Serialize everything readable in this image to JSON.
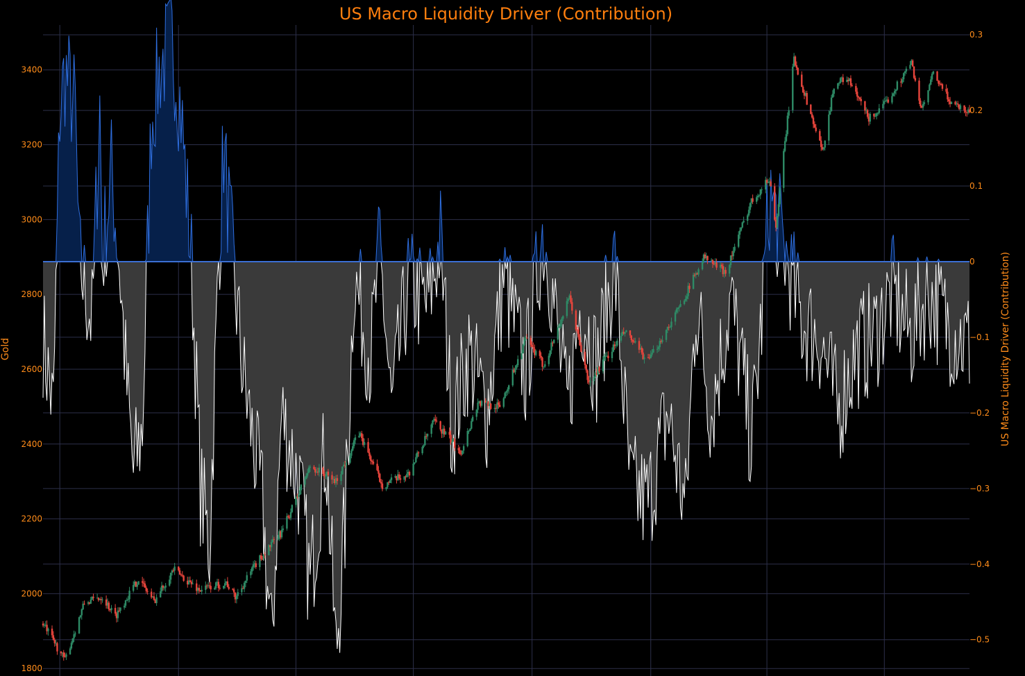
{
  "chart_data": {
    "type": "candlestick+area",
    "title": "US Macro Liquidity Driver (Contribution)",
    "yaxis_left": {
      "label": "Gold",
      "range": [
        1780,
        3520
      ],
      "ticks": [
        1800,
        2000,
        2200,
        2400,
        2600,
        2800,
        3000,
        3200,
        3400
      ]
    },
    "yaxis_right": {
      "label": "US Macro Liquidity Driver (Contribution)",
      "range": [
        -0.548,
        0.313
      ],
      "ticks": [
        0.3,
        0.2,
        0.1,
        0,
        -0.1,
        -0.2,
        -0.3,
        -0.4,
        -0.5
      ],
      "tick_labels": [
        "0.3",
        "0.2",
        "0.1",
        "0",
        "−0.1",
        "−0.2",
        "−0.3",
        "−0.4",
        "−0.5"
      ]
    },
    "x": {
      "type": "date",
      "range": [
        "2023-09-18",
        "2025-09-05"
      ],
      "grid_dates": [
        "2023-10-01",
        "2024-01-01",
        "2024-04-01",
        "2024-07-01",
        "2024-10-01",
        "2025-01-01",
        "2025-04-01",
        "2025-07-01"
      ]
    },
    "grid": true,
    "colors": {
      "up": "#2e8b66",
      "down": "#e8453c",
      "positive_line": "#2f6fe0",
      "positive_fill": "#06204a",
      "negative_line": "#ffffff",
      "negative_fill": "#3a3a3a",
      "zero_line": "#3b6fd4",
      "grid": "#2d2f4a",
      "title": "#ff7f0e",
      "text": "#ff8c1a"
    },
    "gold_close_anchors": [
      [
        "2023-09-18",
        1920
      ],
      [
        "2023-10-05",
        1822
      ],
      [
        "2023-10-20",
        1975
      ],
      [
        "2023-11-03",
        1992
      ],
      [
        "2023-11-13",
        1940
      ],
      [
        "2023-12-01",
        2040
      ],
      [
        "2023-12-04",
        2025
      ],
      [
        "2023-12-13",
        1980
      ],
      [
        "2023-12-28",
        2065
      ],
      [
        "2024-01-17",
        2010
      ],
      [
        "2024-02-07",
        2030
      ],
      [
        "2024-02-14",
        1990
      ],
      [
        "2024-03-01",
        2080
      ],
      [
        "2024-03-21",
        2165
      ],
      [
        "2024-04-12",
        2340
      ],
      [
        "2024-04-23",
        2320
      ],
      [
        "2024-05-02",
        2300
      ],
      [
        "2024-05-20",
        2430
      ],
      [
        "2024-06-07",
        2290
      ],
      [
        "2024-06-27",
        2320
      ],
      [
        "2024-07-17",
        2460
      ],
      [
        "2024-08-07",
        2380
      ],
      [
        "2024-08-20",
        2510
      ],
      [
        "2024-09-06",
        2500
      ],
      [
        "2024-09-26",
        2680
      ],
      [
        "2024-10-10",
        2610
      ],
      [
        "2024-10-30",
        2790
      ],
      [
        "2024-11-14",
        2560
      ],
      [
        "2024-11-25",
        2620
      ],
      [
        "2024-12-12",
        2700
      ],
      [
        "2024-12-30",
        2620
      ],
      [
        "2025-01-24",
        2770
      ],
      [
        "2025-02-11",
        2900
      ],
      [
        "2025-02-28",
        2860
      ],
      [
        "2025-03-20",
        3050
      ],
      [
        "2025-04-03",
        3110
      ],
      [
        "2025-04-08",
        2980
      ],
      [
        "2025-04-22",
        3430
      ],
      [
        "2025-05-14",
        3180
      ],
      [
        "2025-05-23",
        3360
      ],
      [
        "2025-06-02",
        3380
      ],
      [
        "2025-06-19",
        3270
      ],
      [
        "2025-06-30",
        3300
      ],
      [
        "2025-07-22",
        3420
      ],
      [
        "2025-07-30",
        3290
      ],
      [
        "2025-08-08",
        3390
      ],
      [
        "2025-08-20",
        3320
      ],
      [
        "2025-09-03",
        3290
      ]
    ],
    "contribution_anchors": [
      [
        "2023-09-18",
        -0.1
      ],
      [
        "2023-09-26",
        -0.2
      ],
      [
        "2023-10-01",
        0.2
      ],
      [
        "2023-10-05",
        0.25
      ],
      [
        "2023-10-13",
        0.2
      ],
      [
        "2023-10-16",
        0.0
      ],
      [
        "2023-10-26",
        -0.08
      ],
      [
        "2023-11-01",
        0.21
      ],
      [
        "2023-11-03",
        0.0
      ],
      [
        "2023-11-10",
        0.12
      ],
      [
        "2023-11-16",
        0.0
      ],
      [
        "2023-11-22",
        -0.17
      ],
      [
        "2023-11-27",
        -0.28
      ],
      [
        "2023-12-04",
        -0.22
      ],
      [
        "2023-12-11",
        0.19
      ],
      [
        "2023-12-18",
        0.26
      ],
      [
        "2023-12-27",
        0.29
      ],
      [
        "2024-01-03",
        0.2
      ],
      [
        "2024-01-11",
        0.0
      ],
      [
        "2024-01-18",
        -0.3
      ],
      [
        "2024-01-25",
        -0.38
      ],
      [
        "2024-02-01",
        0.0
      ],
      [
        "2024-02-05",
        0.15
      ],
      [
        "2024-02-12",
        0.0
      ],
      [
        "2024-02-20",
        -0.15
      ],
      [
        "2024-03-06",
        -0.32
      ],
      [
        "2024-03-13",
        -0.51
      ],
      [
        "2024-03-21",
        -0.2
      ],
      [
        "2024-04-04",
        -0.3
      ],
      [
        "2024-04-12",
        -0.43
      ],
      [
        "2024-04-24",
        -0.24
      ],
      [
        "2024-05-02",
        -0.52
      ],
      [
        "2024-05-09",
        -0.35
      ],
      [
        "2024-05-16",
        -0.02
      ],
      [
        "2024-05-29",
        -0.13
      ],
      [
        "2024-06-05",
        0.02
      ],
      [
        "2024-06-14",
        -0.2
      ],
      [
        "2024-06-27",
        -0.03
      ],
      [
        "2024-07-12",
        -0.06
      ],
      [
        "2024-07-22",
        0.03
      ],
      [
        "2024-07-31",
        -0.22
      ],
      [
        "2024-08-13",
        -0.12
      ],
      [
        "2024-08-27",
        -0.2
      ],
      [
        "2024-09-09",
        -0.02
      ],
      [
        "2024-09-26",
        -0.15
      ],
      [
        "2024-10-09",
        0.04
      ],
      [
        "2024-10-14",
        0.0
      ],
      [
        "2024-10-28",
        -0.2
      ],
      [
        "2024-11-08",
        -0.05
      ],
      [
        "2024-11-20",
        -0.14
      ],
      [
        "2024-12-04",
        0.0
      ],
      [
        "2024-12-16",
        -0.3
      ],
      [
        "2024-12-30",
        -0.32
      ],
      [
        "2025-01-14",
        -0.2
      ],
      [
        "2025-01-28",
        -0.33
      ],
      [
        "2025-02-05",
        -0.05
      ],
      [
        "2025-02-17",
        -0.2
      ],
      [
        "2025-03-04",
        -0.05
      ],
      [
        "2025-03-13",
        -0.15
      ],
      [
        "2025-03-20",
        -0.24
      ],
      [
        "2025-03-27",
        -0.1
      ],
      [
        "2025-04-03",
        0.09
      ],
      [
        "2025-04-11",
        0.04
      ],
      [
        "2025-04-17",
        0.0
      ],
      [
        "2025-04-28",
        -0.08
      ],
      [
        "2025-05-12",
        -0.1
      ],
      [
        "2025-05-26",
        -0.2
      ],
      [
        "2025-06-09",
        -0.12
      ],
      [
        "2025-06-23",
        -0.1
      ],
      [
        "2025-07-07",
        -0.04
      ],
      [
        "2025-07-21",
        -0.1
      ],
      [
        "2025-08-04",
        -0.04
      ],
      [
        "2025-08-18",
        -0.08
      ],
      [
        "2025-09-03",
        -0.11
      ]
    ]
  }
}
